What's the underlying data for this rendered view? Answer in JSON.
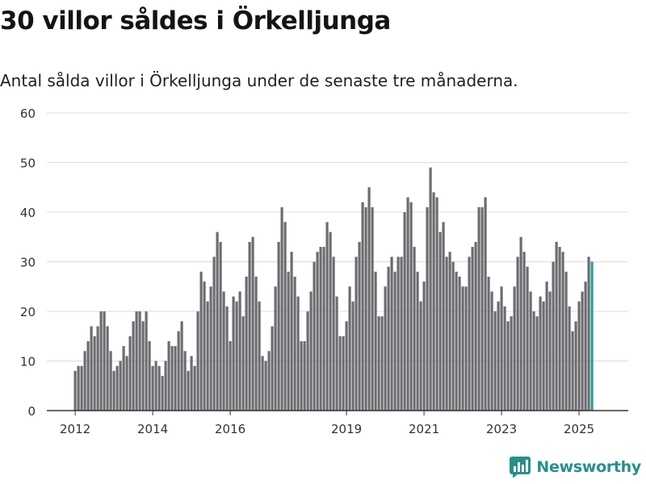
{
  "header": {
    "title": "30 villor såldes i Örkelljunga",
    "subtitle": "Antal sålda villor i Örkelljunga under de senaste tre månaderna."
  },
  "brand": {
    "name": "Newsworthy",
    "icon": "bar-chart-logo-icon",
    "color": "#2a8f8a"
  },
  "colors": {
    "bar": "#6d6b70",
    "highlight": "#2a9d96",
    "grid": "#dcdcdc",
    "axis": "#333333"
  },
  "chart_data": {
    "type": "bar",
    "title": "30 villor såldes i Örkelljunga",
    "subtitle": "Antal sålda villor i Örkelljunga under de senaste tre månaderna.",
    "ylim": [
      0,
      60
    ],
    "yticks": [
      0,
      10,
      20,
      30,
      40,
      50,
      60
    ],
    "xticks": [
      {
        "label": "2012",
        "index": 0
      },
      {
        "label": "2014",
        "index": 24
      },
      {
        "label": "2016",
        "index": 48
      },
      {
        "label": "2019",
        "index": 84
      },
      {
        "label": "2021",
        "index": 108
      },
      {
        "label": "2023",
        "index": 132
      },
      {
        "label": "2025",
        "index": 156
      }
    ],
    "start": "2012-01",
    "frequency": "monthly",
    "grid": true,
    "highlight_last": true,
    "annotation": {
      "text": "30",
      "index": 162
    },
    "values": [
      8,
      9,
      9,
      12,
      14,
      17,
      15,
      17,
      20,
      20,
      17,
      12,
      8,
      9,
      10,
      13,
      11,
      15,
      18,
      20,
      20,
      18,
      20,
      14,
      9,
      10,
      9,
      7,
      10,
      14,
      13,
      13,
      16,
      18,
      12,
      8,
      11,
      9,
      20,
      28,
      26,
      22,
      25,
      31,
      36,
      34,
      24,
      21,
      14,
      23,
      22,
      24,
      19,
      27,
      34,
      35,
      27,
      22,
      11,
      10,
      12,
      17,
      25,
      34,
      41,
      38,
      28,
      32,
      27,
      23,
      14,
      14,
      20,
      24,
      30,
      32,
      33,
      33,
      38,
      36,
      31,
      23,
      15,
      15,
      18,
      25,
      22,
      31,
      34,
      42,
      41,
      45,
      41,
      28,
      19,
      19,
      25,
      29,
      31,
      28,
      31,
      31,
      40,
      43,
      42,
      33,
      28,
      22,
      26,
      41,
      49,
      44,
      43,
      36,
      38,
      31,
      32,
      30,
      28,
      27,
      25,
      25,
      31,
      33,
      34,
      41,
      41,
      43,
      27,
      24,
      20,
      22,
      25,
      21,
      18,
      19,
      25,
      31,
      35,
      32,
      29,
      24,
      20,
      19,
      23,
      22,
      26,
      24,
      30,
      34,
      33,
      32,
      28,
      21,
      16,
      18,
      22,
      24,
      26,
      31,
      30
    ]
  }
}
